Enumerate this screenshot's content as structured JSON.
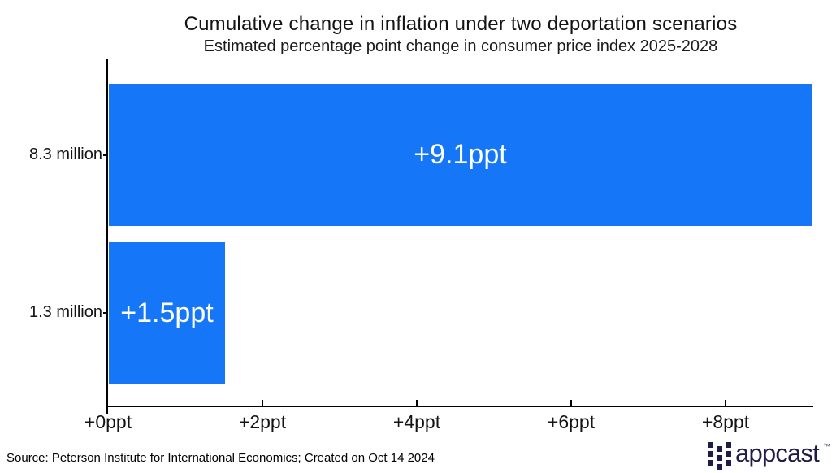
{
  "chart_data": {
    "type": "bar",
    "orientation": "horizontal",
    "title": "Cumulative change in inflation under two deportation scenarios",
    "subtitle": "Estimated percentage point change in consumer price index 2025-2028",
    "categories": [
      "8.3 million",
      "1.3 million"
    ],
    "values": [
      9.1,
      1.5
    ],
    "value_labels": [
      "+9.1ppt",
      "+1.5ppt"
    ],
    "xlabel": "",
    "ylabel": "",
    "x_ticks": [
      {
        "value": 0,
        "label": "+0ppt"
      },
      {
        "value": 2,
        "label": "+2ppt"
      },
      {
        "value": 4,
        "label": "+4ppt"
      },
      {
        "value": 6,
        "label": "+6ppt"
      },
      {
        "value": 8,
        "label": "+8ppt"
      }
    ],
    "xlim": [
      0,
      9.14
    ],
    "grid": false,
    "legend": false,
    "bar_color": "#1577f8",
    "bar_label_color": "#ffffff",
    "axis_color": "#000000"
  },
  "footer": {
    "source": "Source: Peterson Institute for International Economics; Created on Oct 14 2024"
  },
  "logo": {
    "text": "appcast",
    "trademark": "™",
    "icon": "appcast-grid-icon",
    "color": "#1e1c49"
  }
}
